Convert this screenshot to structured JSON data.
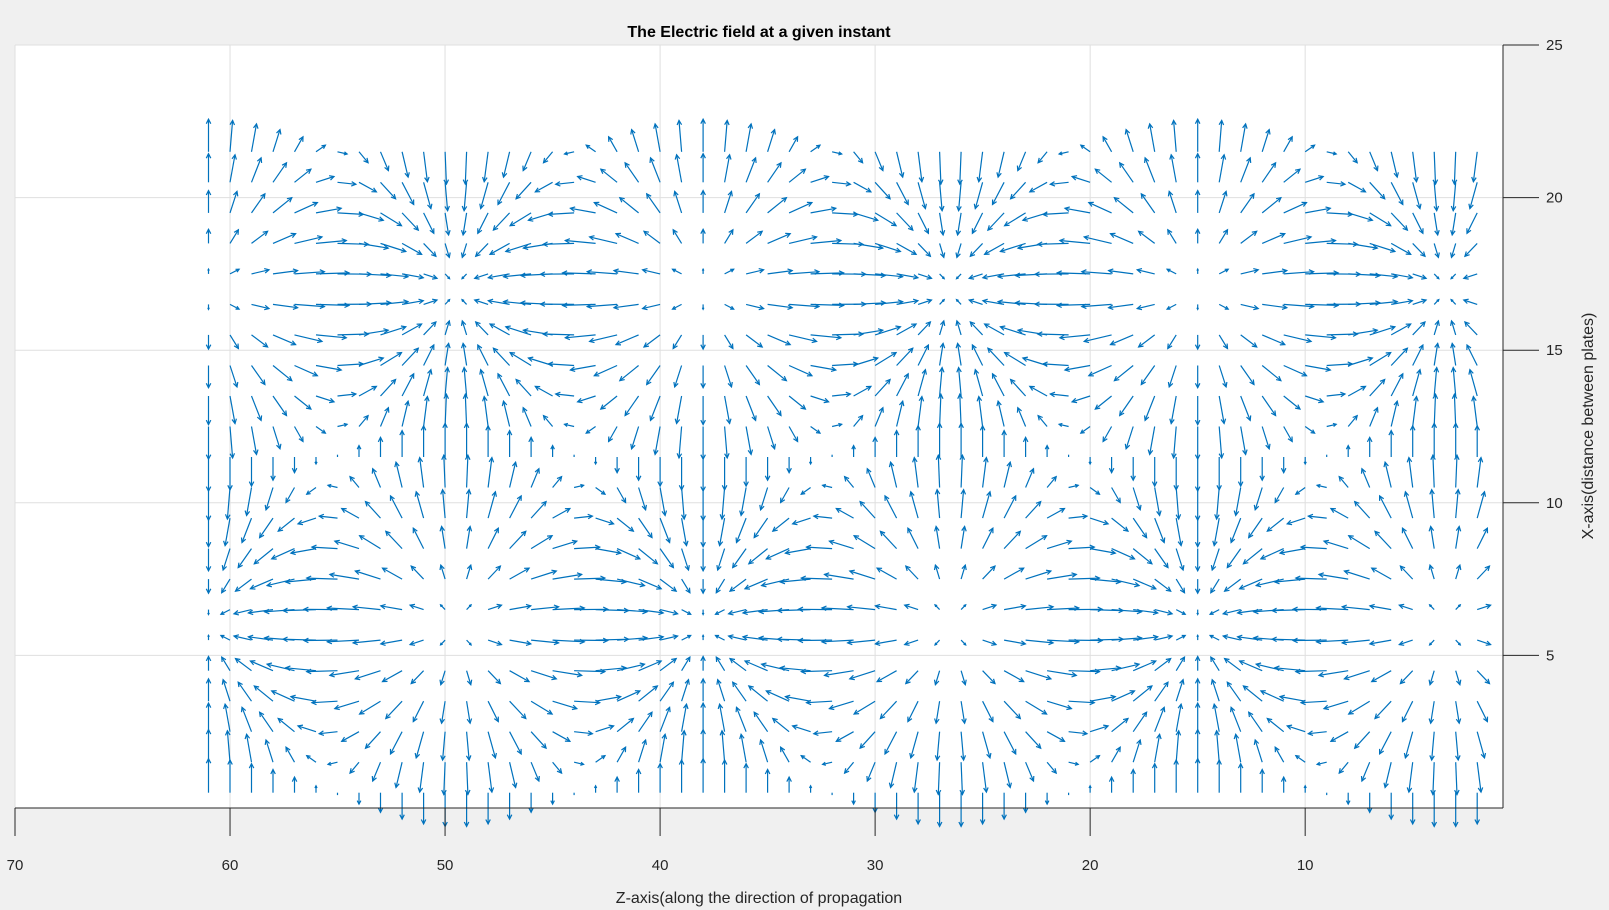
{
  "chart_data": {
    "type": "quiver",
    "title": "The Electric field at a given instant",
    "xlabel": "Z-axis(along the direction of propagation",
    "ylabel": "X-axis(distance between plates)",
    "x_direction": "reversed",
    "y_axis_location": "right",
    "xlim": [
      0.8,
      70
    ],
    "ylim": [
      0,
      25
    ],
    "xticks": [
      70,
      60,
      50,
      40,
      30,
      20,
      10
    ],
    "yticks": [
      5,
      10,
      15,
      20,
      25
    ],
    "grid": true,
    "arrow_color": "#0072BD",
    "field": {
      "z_start": 61,
      "z_end": 2,
      "z_step": 1,
      "x_start": 0.5,
      "x_end": 21.5,
      "x_step": 1,
      "x_wavelength": 22,
      "z_wavelength": 23,
      "z_phase": 61,
      "direction_convention": "arrow tip points along the plotted direction for each (Ez, Ex) vector"
    }
  }
}
